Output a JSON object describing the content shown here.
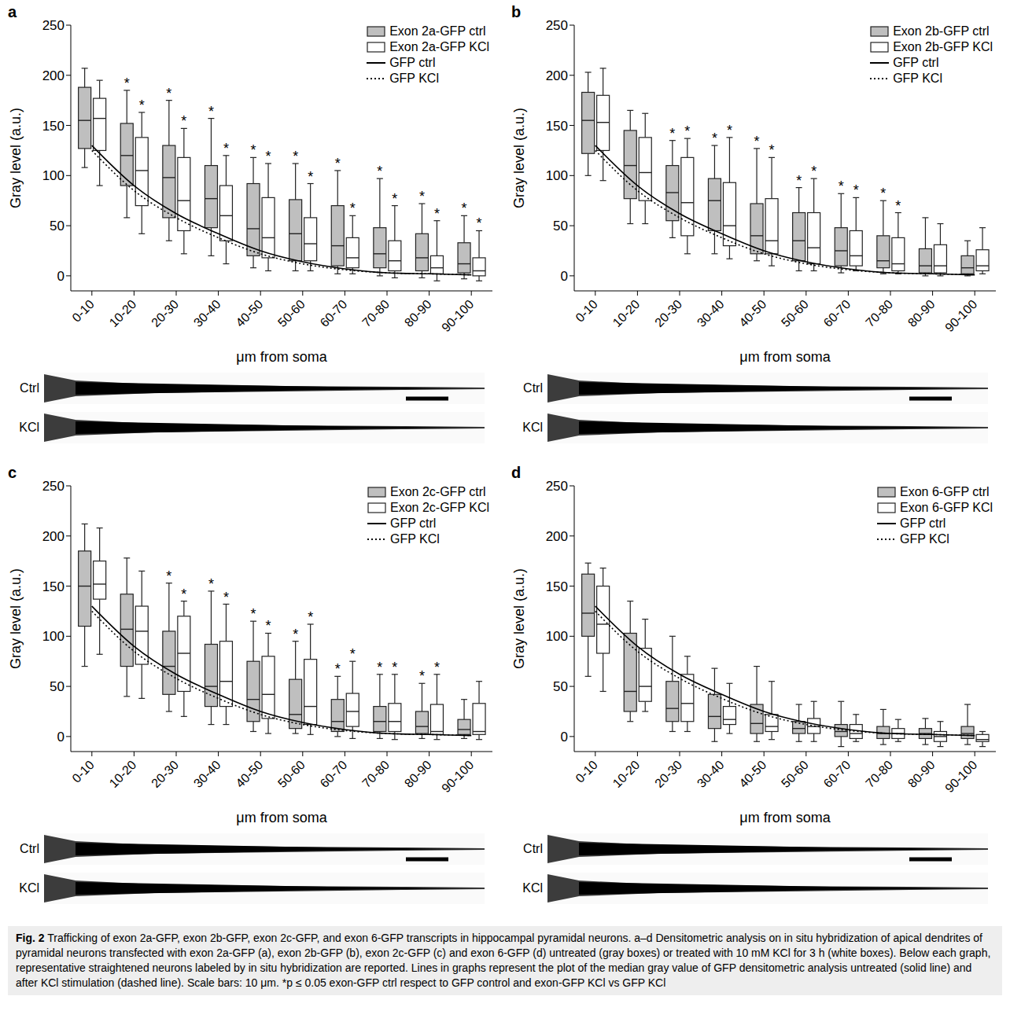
{
  "chart_data": [
    {
      "type": "box",
      "letter": "a",
      "x_label": "μm from soma",
      "y_label": "Gray level (a.u.)",
      "categories": [
        "0-10",
        "10-20",
        "20-30",
        "30-40",
        "40-50",
        "50-60",
        "60-70",
        "70-80",
        "80-90",
        "90-100"
      ],
      "ylim": [
        -15,
        250
      ],
      "yticks": [
        0,
        50,
        100,
        150,
        200,
        250
      ],
      "significance_marker": "*",
      "series": [
        {
          "name": "Exon 2a-GFP ctrl",
          "type": "box",
          "color": "#bfbfbf",
          "values": [
            [
              108,
              127,
              155,
              188,
              207
            ],
            [
              58,
              90,
              120,
              152,
              185
            ],
            [
              35,
              58,
              98,
              130,
              175
            ],
            [
              20,
              48,
              77,
              110,
              157
            ],
            [
              8,
              20,
              47,
              92,
              118
            ],
            [
              5,
              15,
              42,
              76,
              112
            ],
            [
              2,
              10,
              30,
              70,
              105
            ],
            [
              0,
              8,
              22,
              48,
              97
            ],
            [
              -2,
              5,
              18,
              42,
              72
            ],
            [
              -3,
              3,
              12,
              33,
              60
            ]
          ],
          "significant": [
            false,
            true,
            true,
            true,
            true,
            true,
            true,
            true,
            true,
            true
          ]
        },
        {
          "name": "Exon 2a-GFP KCl",
          "type": "box",
          "color": "#ffffff",
          "values": [
            [
              90,
              125,
              157,
              177,
              195
            ],
            [
              42,
              70,
              105,
              138,
              163
            ],
            [
              22,
              45,
              75,
              118,
              147
            ],
            [
              12,
              35,
              60,
              90,
              120
            ],
            [
              5,
              18,
              38,
              78,
              112
            ],
            [
              5,
              15,
              32,
              58,
              92
            ],
            [
              2,
              8,
              18,
              38,
              60
            ],
            [
              -2,
              5,
              15,
              35,
              70
            ],
            [
              -5,
              2,
              8,
              20,
              55
            ],
            [
              -5,
              0,
              5,
              18,
              45
            ]
          ],
          "significant": [
            false,
            true,
            true,
            true,
            true,
            true,
            true,
            true,
            true,
            true
          ]
        },
        {
          "name": "GFP ctrl",
          "type": "line",
          "color": "#000000",
          "line_style": "solid",
          "values": [
            130,
            90,
            62,
            42,
            25,
            14,
            7,
            3,
            2,
            1
          ]
        },
        {
          "name": "GFP KCl",
          "type": "line",
          "color": "#000000",
          "line_style": "dotted",
          "values": [
            125,
            85,
            58,
            38,
            22,
            12,
            6,
            3,
            2,
            1
          ]
        }
      ]
    },
    {
      "type": "box",
      "letter": "b",
      "x_label": "μm from soma",
      "y_label": "Gray level (a.u.)",
      "categories": [
        "0-10",
        "10-20",
        "20-30",
        "30-40",
        "40-50",
        "50-60",
        "60-70",
        "70-80",
        "80-90",
        "90-100"
      ],
      "ylim": [
        -15,
        250
      ],
      "yticks": [
        0,
        50,
        100,
        150,
        200,
        250
      ],
      "significance_marker": "*",
      "series": [
        {
          "name": "Exon 2b-GFP ctrl",
          "type": "box",
          "color": "#bfbfbf",
          "values": [
            [
              100,
              122,
              155,
              183,
              203
            ],
            [
              52,
              77,
              110,
              145,
              165
            ],
            [
              38,
              55,
              83,
              110,
              135
            ],
            [
              22,
              45,
              75,
              97,
              130
            ],
            [
              15,
              22,
              40,
              72,
              127
            ],
            [
              5,
              15,
              35,
              63,
              88
            ],
            [
              3,
              10,
              25,
              48,
              82
            ],
            [
              2,
              8,
              15,
              40,
              75
            ],
            [
              0,
              3,
              10,
              27,
              58
            ],
            [
              0,
              2,
              8,
              20,
              35
            ]
          ],
          "significant": [
            false,
            false,
            true,
            true,
            true,
            true,
            true,
            true,
            false,
            false
          ]
        },
        {
          "name": "Exon 2b-GFP KCl",
          "type": "box",
          "color": "#ffffff",
          "values": [
            [
              95,
              125,
              153,
              180,
              207
            ],
            [
              52,
              75,
              103,
              138,
              162
            ],
            [
              22,
              40,
              73,
              118,
              137
            ],
            [
              17,
              30,
              50,
              93,
              138
            ],
            [
              10,
              22,
              35,
              77,
              118
            ],
            [
              5,
              12,
              28,
              63,
              97
            ],
            [
              5,
              10,
              20,
              45,
              78
            ],
            [
              2,
              5,
              12,
              38,
              63
            ],
            [
              0,
              3,
              10,
              31,
              52
            ],
            [
              2,
              5,
              10,
              26,
              48
            ]
          ],
          "significant": [
            false,
            false,
            true,
            true,
            true,
            true,
            true,
            true,
            false,
            false
          ]
        },
        {
          "name": "GFP ctrl",
          "type": "line",
          "color": "#000000",
          "line_style": "solid",
          "values": [
            130,
            90,
            62,
            42,
            25,
            14,
            7,
            3,
            2,
            1
          ]
        },
        {
          "name": "GFP KCl",
          "type": "line",
          "color": "#000000",
          "line_style": "dotted",
          "values": [
            125,
            85,
            58,
            38,
            22,
            12,
            6,
            3,
            2,
            1
          ]
        }
      ]
    },
    {
      "type": "box",
      "letter": "c",
      "x_label": "μm from soma",
      "y_label": "Gray level (a.u.)",
      "categories": [
        "0-10",
        "10-20",
        "20-30",
        "30-40",
        "40-50",
        "50-60",
        "60-70",
        "70-80",
        "80-90",
        "90-100"
      ],
      "ylim": [
        -15,
        250
      ],
      "yticks": [
        0,
        50,
        100,
        150,
        200,
        250
      ],
      "significance_marker": "*",
      "series": [
        {
          "name": "Exon 2c-GFP ctrl",
          "type": "box",
          "color": "#bfbfbf",
          "values": [
            [
              70,
              110,
              150,
              185,
              212
            ],
            [
              40,
              70,
              107,
              142,
              178
            ],
            [
              25,
              42,
              70,
              105,
              153
            ],
            [
              12,
              30,
              50,
              92,
              145
            ],
            [
              5,
              15,
              37,
              75,
              115
            ],
            [
              3,
              8,
              22,
              57,
              95
            ],
            [
              0,
              5,
              15,
              37,
              60
            ],
            [
              -2,
              5,
              15,
              30,
              62
            ],
            [
              -2,
              3,
              10,
              25,
              53
            ],
            [
              -2,
              2,
              7,
              17,
              37
            ]
          ],
          "significant": [
            false,
            false,
            true,
            true,
            true,
            true,
            true,
            true,
            true,
            false
          ]
        },
        {
          "name": "Exon 2c-GFP KCl",
          "type": "box",
          "color": "#ffffff",
          "values": [
            [
              82,
              137,
              152,
              175,
              208
            ],
            [
              38,
              72,
              105,
              130,
              165
            ],
            [
              20,
              45,
              83,
              120,
              135
            ],
            [
              12,
              30,
              55,
              95,
              132
            ],
            [
              3,
              18,
              42,
              80,
              103
            ],
            [
              2,
              12,
              30,
              77,
              112
            ],
            [
              -2,
              10,
              25,
              43,
              75
            ],
            [
              -3,
              5,
              15,
              33,
              62
            ],
            [
              -3,
              2,
              5,
              32,
              62
            ],
            [
              -3,
              2,
              5,
              33,
              55
            ]
          ],
          "significant": [
            false,
            false,
            true,
            true,
            true,
            true,
            true,
            true,
            true,
            false
          ]
        },
        {
          "name": "GFP ctrl",
          "type": "line",
          "color": "#000000",
          "line_style": "solid",
          "values": [
            130,
            90,
            62,
            42,
            25,
            14,
            7,
            3,
            2,
            1
          ]
        },
        {
          "name": "GFP KCl",
          "type": "line",
          "color": "#000000",
          "line_style": "dotted",
          "values": [
            125,
            85,
            58,
            38,
            22,
            12,
            6,
            3,
            2,
            1
          ]
        }
      ]
    },
    {
      "type": "box",
      "letter": "d",
      "x_label": "μm from soma",
      "y_label": "Gray level (a.u.)",
      "categories": [
        "0-10",
        "10-20",
        "20-30",
        "30-40",
        "40-50",
        "50-60",
        "60-70",
        "70-80",
        "80-90",
        "90-100"
      ],
      "ylim": [
        -15,
        250
      ],
      "yticks": [
        0,
        50,
        100,
        150,
        200,
        250
      ],
      "significance_marker": "*",
      "series": [
        {
          "name": "Exon 6-GFP ctrl",
          "type": "box",
          "color": "#bfbfbf",
          "values": [
            [
              60,
              100,
              123,
              162,
              173
            ],
            [
              15,
              25,
              45,
              103,
              135
            ],
            [
              5,
              15,
              28,
              55,
              100
            ],
            [
              -5,
              8,
              20,
              42,
              68
            ],
            [
              -5,
              3,
              13,
              32,
              70
            ],
            [
              -5,
              3,
              8,
              15,
              32
            ],
            [
              -10,
              0,
              5,
              12,
              35
            ],
            [
              -8,
              -2,
              3,
              10,
              27
            ],
            [
              -8,
              -2,
              3,
              8,
              18
            ],
            [
              -8,
              -2,
              3,
              10,
              32
            ]
          ],
          "significant": [
            false,
            false,
            false,
            false,
            false,
            false,
            false,
            false,
            false,
            false
          ]
        },
        {
          "name": "Exon 6-GFP KCl",
          "type": "box",
          "color": "#ffffff",
          "values": [
            [
              45,
              83,
              112,
              150,
              168
            ],
            [
              25,
              35,
              50,
              88,
              117
            ],
            [
              5,
              15,
              33,
              62,
              80
            ],
            [
              3,
              12,
              17,
              30,
              53
            ],
            [
              -3,
              5,
              10,
              22,
              55
            ],
            [
              -5,
              3,
              10,
              18,
              35
            ],
            [
              -5,
              -2,
              3,
              12,
              22
            ],
            [
              -5,
              -2,
              3,
              8,
              17
            ],
            [
              -10,
              -5,
              0,
              5,
              15
            ],
            [
              -10,
              -5,
              -3,
              2,
              5
            ]
          ],
          "significant": [
            false,
            false,
            false,
            false,
            false,
            false,
            false,
            false,
            false,
            false
          ]
        },
        {
          "name": "GFP ctrl",
          "type": "line",
          "color": "#000000",
          "line_style": "solid",
          "values": [
            130,
            90,
            62,
            42,
            25,
            14,
            7,
            3,
            2,
            1
          ]
        },
        {
          "name": "GFP KCl",
          "type": "line",
          "color": "#000000",
          "line_style": "dotted",
          "values": [
            125,
            85,
            58,
            38,
            22,
            12,
            6,
            3,
            2,
            1
          ]
        }
      ]
    }
  ],
  "image_labels": [
    "Ctrl",
    "KCl"
  ],
  "caption": {
    "label": "Fig. 2",
    "text": "Trafficking of exon 2a-GFP, exon 2b-GFP, exon 2c-GFP, and exon 6-GFP transcripts in hippocampal pyramidal neurons. a–d Densitometric analysis on in situ hybridization of apical dendrites of pyramidal neurons transfected with exon 2a-GFP (a), exon 2b-GFP (b), exon 2c-GFP (c) and exon 6-GFP (d) untreated (gray boxes) or treated with 10 mM KCl for 3 h (white boxes). Below each graph, representative straightened neurons labeled by in situ hybridization are reported. Lines in graphs represent the plot of the median gray value of GFP densitometric analysis untreated (solid line) and after KCl stimulation (dashed line). Scale bars: 10 μm. *p ≤ 0.05 exon-GFP ctrl respect to GFP control and exon-GFP KCl vs GFP KCl"
  }
}
